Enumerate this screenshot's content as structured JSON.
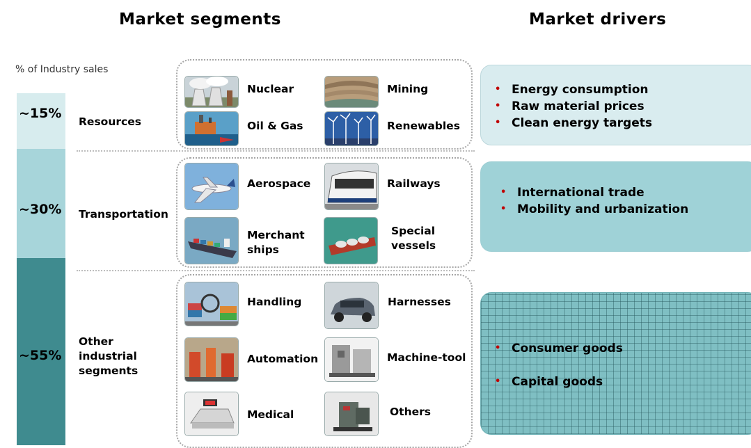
{
  "headers": {
    "segments": "Market segments",
    "drivers": "Market drivers"
  },
  "axis_label": "% of Industry sales",
  "colors": {
    "resources_bar": "#d7ecee",
    "transportation_bar": "#a7d5da",
    "other_bar": "#3f8b8f",
    "driver_light": "#d9ecef",
    "driver_mid": "#9fd2d7",
    "driver_dark": "#7fbfc3",
    "bullet": "#c00000"
  },
  "segments": [
    {
      "share": "~15%",
      "name": "Resources",
      "items": [
        {
          "label": "Nuclear",
          "icon": "nuclear-plant-photo"
        },
        {
          "label": "Mining",
          "icon": "mining-pit-photo"
        },
        {
          "label": "Oil & Gas",
          "icon": "oil-rig-photo"
        },
        {
          "label": "Renewables",
          "icon": "wind-turbines-photo"
        }
      ],
      "drivers": [
        "Energy consumption",
        "Raw material prices",
        "Clean energy targets"
      ]
    },
    {
      "share": "~30%",
      "name": "Transportation",
      "items": [
        {
          "label": "Aerospace",
          "icon": "airplane-photo"
        },
        {
          "label": "Railways",
          "icon": "train-photo"
        },
        {
          "label_line1": "Merchant",
          "label_line2": "ships",
          "icon": "cargo-ship-photo"
        },
        {
          "label_line1": "Special",
          "label_line2": "vessels",
          "icon": "lng-tanker-photo"
        }
      ],
      "drivers": [
        "International trade",
        "Mobility and urbanization"
      ]
    },
    {
      "share": "~55%",
      "name_line1": "Other",
      "name_line2": "industrial",
      "name_line3": "segments",
      "items": [
        {
          "label": "Handling",
          "icon": "container-crane-photo"
        },
        {
          "label": "Harnesses",
          "icon": "car-photo"
        },
        {
          "label": "Automation",
          "icon": "robot-line-photo"
        },
        {
          "label": "Machine-tool",
          "icon": "machine-tool-photo"
        },
        {
          "label": "Medical",
          "icon": "medical-device-photo"
        },
        {
          "label": "Others",
          "icon": "generator-photo"
        }
      ],
      "drivers": [
        "Consumer goods",
        "Capital goods"
      ]
    }
  ]
}
